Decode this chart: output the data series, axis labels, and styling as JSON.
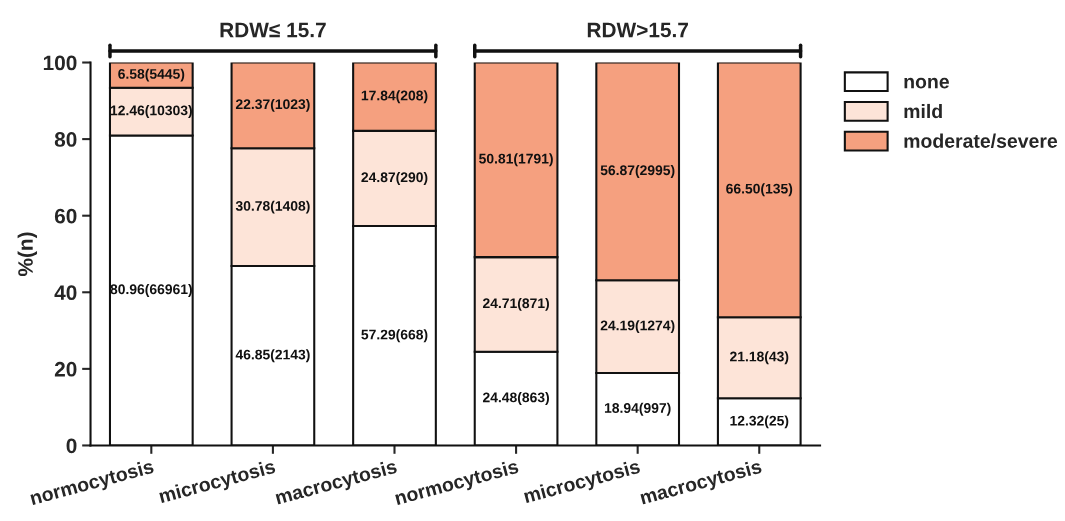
{
  "chart_data": {
    "type": "bar",
    "stacked": true,
    "ylabel": "%(n)",
    "categories": [
      "normocytosis",
      "microcytosis",
      "macrocytosis",
      "normocytosis",
      "microcytosis",
      "macrocytosis"
    ],
    "series": [
      {
        "name": "none",
        "color": "#ffffff",
        "values": [
          80.96,
          46.85,
          57.29,
          24.48,
          18.94,
          12.32
        ],
        "value_labels": [
          "80.96(66961)",
          "46.85(2143)",
          "57.29(668)",
          "24.48(863)",
          "18.94(997)",
          "12.32(25)"
        ]
      },
      {
        "name": "mild",
        "color": "#fde4d8",
        "values": [
          12.46,
          30.78,
          24.87,
          24.71,
          24.19,
          21.18
        ],
        "value_labels": [
          "12.46(10303)",
          "30.78(1408)",
          "24.87(290)",
          "24.71(871)",
          "24.19(1274)",
          "21.18(43)"
        ]
      },
      {
        "name": "moderate/severe",
        "color": "#f5a07f",
        "values": [
          6.58,
          22.37,
          17.84,
          50.81,
          56.87,
          66.5
        ],
        "value_labels": [
          "6.58(5445)",
          "22.37(1023)",
          "17.84(208)",
          "50.81(1791)",
          "56.87(2995)",
          "66.50(135)"
        ]
      }
    ],
    "ylim": [
      0,
      100
    ],
    "yticks": [
      0,
      20,
      40,
      60,
      80,
      100
    ],
    "annotations": [
      "RDW≤ 15.7",
      "RDW>15.7"
    ],
    "grid": false,
    "legend": "top right"
  }
}
